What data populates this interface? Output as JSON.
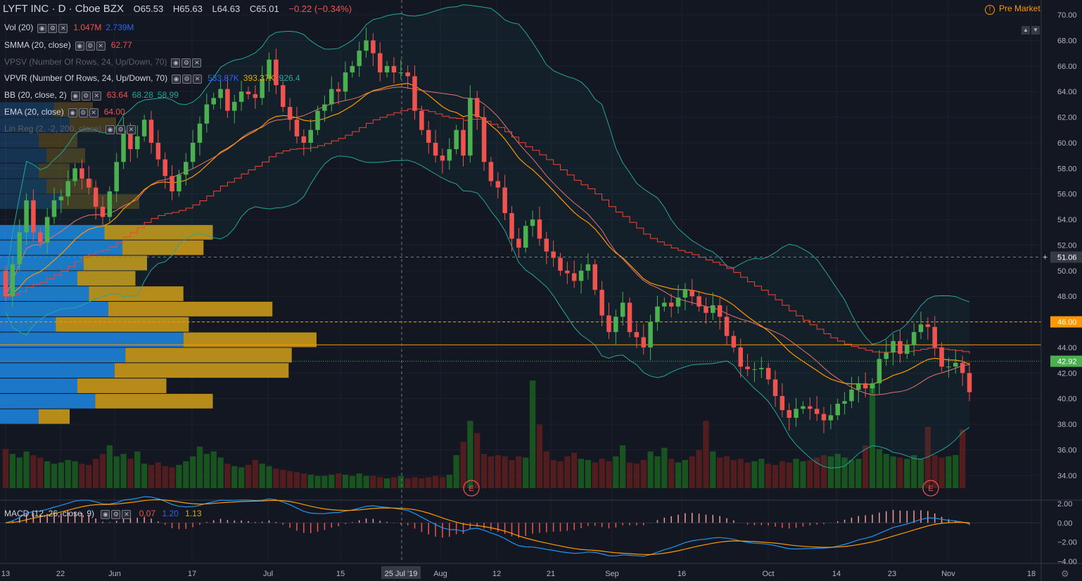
{
  "header": {
    "symbol": "LYFT INC · D · Cboe BZX",
    "open": "O65.53",
    "high": "H65.63",
    "low": "L64.63",
    "close": "C65.01",
    "change": "−0.22 (−0.34%)"
  },
  "premarket_label": "Pre Market",
  "indicators": [
    {
      "label": "Vol (20)",
      "vals": [
        "1.047M",
        "2.739M"
      ]
    },
    {
      "label": "SMMA (20, close)",
      "vals": [
        "62.77"
      ]
    },
    {
      "label": "VPSV (Number Of Rows, 24, Up/Down, 70)",
      "vals": []
    },
    {
      "label": "VPVR (Number Of Rows, 24, Up/Down, 70)",
      "vals": [
        "533.87K",
        "393.37K",
        "926.4"
      ]
    },
    {
      "label": "BB (20, close, 2)",
      "vals": [
        "63.64",
        "68.28",
        "58.99"
      ]
    },
    {
      "label": "EMA (20, close)",
      "vals": [
        "64.00"
      ]
    },
    {
      "label": "Lin Reg (2, -2, 200, close)",
      "vals": []
    }
  ],
  "macd": {
    "label": "MACD (12, 26, close, 9)",
    "vals": [
      "0.07",
      "1.20",
      "1.13"
    ]
  },
  "colors": {
    "up": "#26a69a",
    "candle_up": "#4caf50",
    "down": "#ef5350",
    "bb": "#26a69a",
    "ema": "#ff9800",
    "smma": "#f44336",
    "vp_up": "#1e88e5",
    "vp_down": "#d4a017",
    "macd": "#2196f3",
    "signal": "#ff9800",
    "background": "#131722"
  },
  "chart_data": {
    "type": "candlestick",
    "price_ylim": [
      33,
      70.5
    ],
    "price_ticks": [
      "70.00",
      "68.00",
      "66.00",
      "64.00",
      "62.00",
      "60.00",
      "58.00",
      "56.00",
      "54.00",
      "52.00",
      "50.00",
      "48.00",
      "46.00",
      "44.00",
      "42.00",
      "40.00",
      "38.00",
      "36.00",
      "34.00"
    ],
    "price_labels": [
      {
        "value": 51.06,
        "text": "51.06",
        "color": "#363a45"
      },
      {
        "value": 46.0,
        "text": "46.00",
        "color": "#ff9800"
      },
      {
        "value": 42.92,
        "text": "42.92",
        "color": "#4caf50"
      }
    ],
    "macd_ylim": [
      -4,
      2
    ],
    "macd_ticks": [
      "2.00",
      "0.00",
      "−2.00",
      "−4.00"
    ],
    "x_ticks": [
      "13",
      "22",
      "Jun",
      "17",
      "Jul",
      "15",
      "Aug",
      "12",
      "21",
      "Sep",
      "16",
      "Oct",
      "14",
      "23",
      "Nov",
      "18"
    ],
    "x_crosshair_label": "25 Jul '19",
    "earnings_marker": "E",
    "candle_closes": [
      48,
      50.5,
      53,
      55.5,
      53,
      52.2,
      54.2,
      55.5,
      55.8,
      57,
      58,
      57.2,
      56.5,
      55,
      54.2,
      56.2,
      58.5,
      61,
      59.5,
      60.5,
      61.8,
      60,
      58.7,
      57.4,
      56.2,
      57.5,
      58.5,
      60,
      61.5,
      63,
      63.5,
      64.2,
      62.5,
      63.2,
      64,
      63.8,
      63.5,
      65,
      66.5,
      64.5,
      62.8,
      61.8,
      60.5,
      60,
      61,
      62.5,
      63,
      64.2,
      64,
      65.5,
      66,
      67.2,
      68,
      67,
      65.5,
      66,
      65.5,
      65.5,
      65.2,
      62.5,
      61,
      60,
      59,
      58.6,
      59.5,
      61,
      59,
      63.5,
      62,
      58.5,
      57,
      56.5,
      54.5,
      52.5,
      51.8,
      53.5,
      54,
      52.5,
      51.5,
      51,
      50,
      49.8,
      49.2,
      50,
      50.5,
      48.5,
      46.5,
      45.2,
      46.4,
      47.5,
      45.2,
      44.8,
      44,
      46,
      47.2,
      47.5,
      47.2,
      47.9,
      48.5,
      48,
      47.2,
      46.7,
      47.3,
      46.4,
      44.9,
      44,
      42.5,
      42.3,
      42.3,
      42.4,
      41.5,
      40.2,
      39.1,
      38.5,
      39.2,
      39.4,
      39.2,
      38.8,
      38.3,
      38.7,
      39.6,
      39.8,
      40.7,
      41.2,
      40.8,
      41.2,
      43.1,
      43.6,
      44.5,
      43.5,
      44.2,
      45.2,
      45.8,
      45.6,
      44,
      42.5,
      42.5,
      42.8,
      42,
      40.5
    ],
    "candle_changes": [
      -2,
      2.5,
      2.5,
      2.5,
      -2.5,
      -0.8,
      2,
      1.3,
      0.3,
      1.2,
      1,
      -0.8,
      -0.7,
      -1.5,
      -0.8,
      2,
      2.3,
      2.5,
      -1.5,
      1,
      1.3,
      -1.8,
      -1.3,
      -1.3,
      -1.2,
      1.3,
      1,
      1.5,
      1.5,
      1.5,
      0.5,
      0.7,
      -1.7,
      0.7,
      0.8,
      -0.2,
      -0.3,
      1.5,
      1.5,
      -2,
      -1.7,
      -1,
      -1.3,
      -0.5,
      1,
      1.5,
      0.5,
      1.2,
      -0.2,
      1.5,
      0.5,
      1.2,
      0.8,
      -1,
      -1.5,
      0.5,
      -0.5,
      0,
      -0.3,
      -2.7,
      -1.5,
      -1,
      -1,
      -0.4,
      0.9,
      1.5,
      -2,
      4.5,
      -1.5,
      -3.5,
      -1.5,
      -0.5,
      -2,
      -2,
      -0.7,
      1.7,
      0.5,
      -1.5,
      -1,
      -0.5,
      -1,
      -0.2,
      -0.6,
      0.8,
      0.5,
      -2,
      -2,
      -1.3,
      1.2,
      1.1,
      -2.3,
      -0.4,
      -0.8,
      2,
      1.2,
      0.3,
      -0.3,
      0.7,
      0.6,
      -0.5,
      -0.8,
      -0.5,
      0.6,
      -0.9,
      -1.5,
      -0.9,
      -1.5,
      -0.2,
      0,
      0.1,
      -0.9,
      -1.3,
      -1.1,
      -0.6,
      0.7,
      0.2,
      -0.2,
      -0.4,
      -0.5,
      0.4,
      0.9,
      0.2,
      0.9,
      0.5,
      -0.4,
      0.4,
      1.9,
      0.5,
      0.9,
      -1,
      0.7,
      1,
      0.6,
      -0.2,
      -1.6,
      -1.5,
      0,
      0.3,
      -0.8,
      -1.5
    ],
    "volumes_M": [
      3.2,
      2.8,
      2.5,
      3,
      2.7,
      2.5,
      2.2,
      2,
      2.1,
      2.3,
      2.2,
      2,
      1.9,
      2.4,
      2.8,
      3.5,
      2.6,
      2.8,
      2.4,
      3,
      2,
      1.9,
      2.1,
      1.8,
      1.7,
      1.9,
      2.2,
      2.6,
      3.4,
      2.8,
      3,
      2.5,
      2,
      1.8,
      1.7,
      1.9,
      2.3,
      2,
      1.8,
      1.6,
      1.5,
      1.4,
      1.3,
      1.2,
      1.1,
      1,
      1,
      1.1,
      1.2,
      1.1,
      1,
      1.2,
      1,
      1,
      0.9,
      0.8,
      0.9,
      1,
      0.8,
      0.9,
      0.8,
      0.9,
      1,
      0.9,
      1.1,
      2.7,
      3.8,
      5.5,
      4.5,
      2.8,
      2.6,
      2.7,
      2.6,
      2.3,
      2.6,
      2.5,
      8.8,
      5.2,
      3,
      2.3,
      2.2,
      2.6,
      2.9,
      2.4,
      2.3,
      2.1,
      2.4,
      2.2,
      2.6,
      3.5,
      2.1,
      2,
      2.3,
      3,
      2.6,
      3.3,
      2.4,
      2.1,
      2.3,
      2.6,
      3.1,
      5.5,
      3,
      2.5,
      2.6,
      2.3,
      2.4,
      2.1,
      2.2,
      2.4,
      2,
      1.9,
      2.2,
      2.1,
      2.4,
      2.2,
      2.3,
      2.5,
      2.7,
      2.6,
      2.8,
      2.5,
      2.3,
      2.4,
      3.5,
      8.5,
      3.2,
      2.8,
      2.6,
      2.5,
      2.4,
      2.7,
      2.4,
      5,
      2.7,
      2.5,
      2.6,
      2.7,
      4.8
    ],
    "vp_rows": [
      {
        "price": 53.0,
        "up": 1.35,
        "down": 1.4
      },
      {
        "price": 51.8,
        "up": 1.58,
        "down": 1.05
      },
      {
        "price": 50.6,
        "up": 1.08,
        "down": 0.82
      },
      {
        "price": 49.4,
        "up": 1.0,
        "down": 0.75
      },
      {
        "price": 48.2,
        "up": 1.15,
        "down": 1.22
      },
      {
        "price": 47.0,
        "up": 1.4,
        "down": 2.12
      },
      {
        "price": 45.8,
        "up": 0.72,
        "down": 1.72
      },
      {
        "price": 44.6,
        "up": 2.37,
        "down": 1.72
      },
      {
        "price": 43.4,
        "up": 1.62,
        "down": 2.15
      },
      {
        "price": 42.2,
        "up": 1.48,
        "down": 2.25
      },
      {
        "price": 41.0,
        "up": 1.0,
        "down": 1.15
      },
      {
        "price": 39.8,
        "up": 1.23,
        "down": 1.52
      },
      {
        "price": 38.6,
        "up": 0.5,
        "down": 0.4
      }
    ],
    "vp_rows_upper": [
      {
        "price": 55.4,
        "up": 0.8,
        "down": 1.0
      },
      {
        "price": 56.6,
        "up": 0.6,
        "down": 0.6
      },
      {
        "price": 57.8,
        "up": 0.5,
        "down": 0.4
      },
      {
        "price": 59.0,
        "up": 0.6,
        "down": 0.5
      },
      {
        "price": 60.2,
        "up": 0.5,
        "down": 0.5
      },
      {
        "price": 61.4,
        "up": 0.9,
        "down": 0.6
      },
      {
        "price": 62.6,
        "up": 0.7,
        "down": 0.5
      }
    ]
  }
}
